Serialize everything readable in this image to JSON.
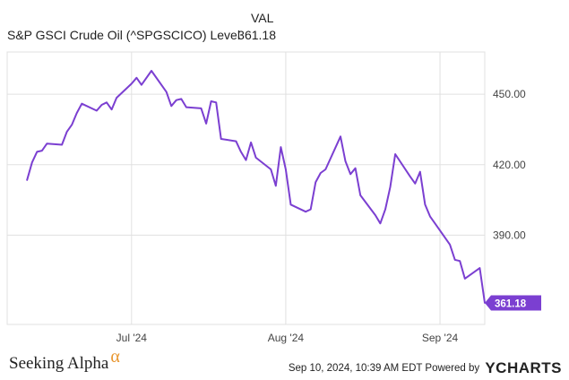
{
  "legend": {
    "column_header": "VAL",
    "series_name": "S&P GSCI Crude Oil (^SPGSCICO) Level",
    "series_value": "361.18"
  },
  "footer": {
    "brand": "Seeking Alpha",
    "brand_symbol": "α",
    "timestamp_text": "Sep 10, 2024, 10:39 AM EDT Powered by",
    "provider": "YCHARTS"
  },
  "colors": {
    "line": "#7b3fd1",
    "grid": "#e0e0e0",
    "brand_alpha": "#e8962e"
  },
  "chart_data": {
    "type": "line",
    "x_tick_labels": [
      "Jul '24",
      "Aug '24",
      "Sep '24"
    ],
    "y_ticks": [
      390,
      420,
      450
    ],
    "y_tick_labels": [
      "390.00",
      "420.00",
      "450.00"
    ],
    "ylim": [
      352,
      468
    ],
    "last_value_label": "361.18",
    "grid": true,
    "series": [
      {
        "name": "S&P GSCI Crude Oil (^SPGSCICO) Level",
        "x": [
          "2024-06-10",
          "2024-06-11",
          "2024-06-12",
          "2024-06-13",
          "2024-06-14",
          "2024-06-17",
          "2024-06-18",
          "2024-06-19",
          "2024-06-20",
          "2024-06-21",
          "2024-06-24",
          "2024-06-25",
          "2024-06-26",
          "2024-06-27",
          "2024-06-28",
          "2024-07-01",
          "2024-07-02",
          "2024-07-03",
          "2024-07-05",
          "2024-07-08",
          "2024-07-09",
          "2024-07-10",
          "2024-07-11",
          "2024-07-12",
          "2024-07-15",
          "2024-07-16",
          "2024-07-17",
          "2024-07-18",
          "2024-07-19",
          "2024-07-22",
          "2024-07-23",
          "2024-07-24",
          "2024-07-25",
          "2024-07-26",
          "2024-07-29",
          "2024-07-30",
          "2024-07-31",
          "2024-08-01",
          "2024-08-02",
          "2024-08-05",
          "2024-08-06",
          "2024-08-07",
          "2024-08-08",
          "2024-08-09",
          "2024-08-12",
          "2024-08-13",
          "2024-08-14",
          "2024-08-15",
          "2024-08-16",
          "2024-08-19",
          "2024-08-20",
          "2024-08-21",
          "2024-08-22",
          "2024-08-23",
          "2024-08-26",
          "2024-08-27",
          "2024-08-28",
          "2024-08-29",
          "2024-08-30",
          "2024-09-03",
          "2024-09-04",
          "2024-09-05",
          "2024-09-06",
          "2024-09-09",
          "2024-09-10"
        ],
        "values": [
          413.5,
          421,
          425.5,
          426,
          429,
          428.5,
          434,
          437,
          442,
          446,
          443,
          445.5,
          446.5,
          443.5,
          448.5,
          454.5,
          457,
          454,
          460,
          451,
          445,
          447.5,
          448,
          444.5,
          444,
          437.5,
          447,
          446.5,
          431,
          430,
          425.5,
          422,
          429.5,
          423,
          418,
          411,
          427.5,
          418,
          403,
          400,
          401,
          412.5,
          416.5,
          418,
          432,
          421.5,
          416,
          418.5,
          407,
          398.5,
          395,
          401,
          410.5,
          424.5,
          415,
          412,
          417,
          403,
          398,
          386,
          379.5,
          379,
          371.5,
          376,
          361.18
        ]
      }
    ]
  }
}
